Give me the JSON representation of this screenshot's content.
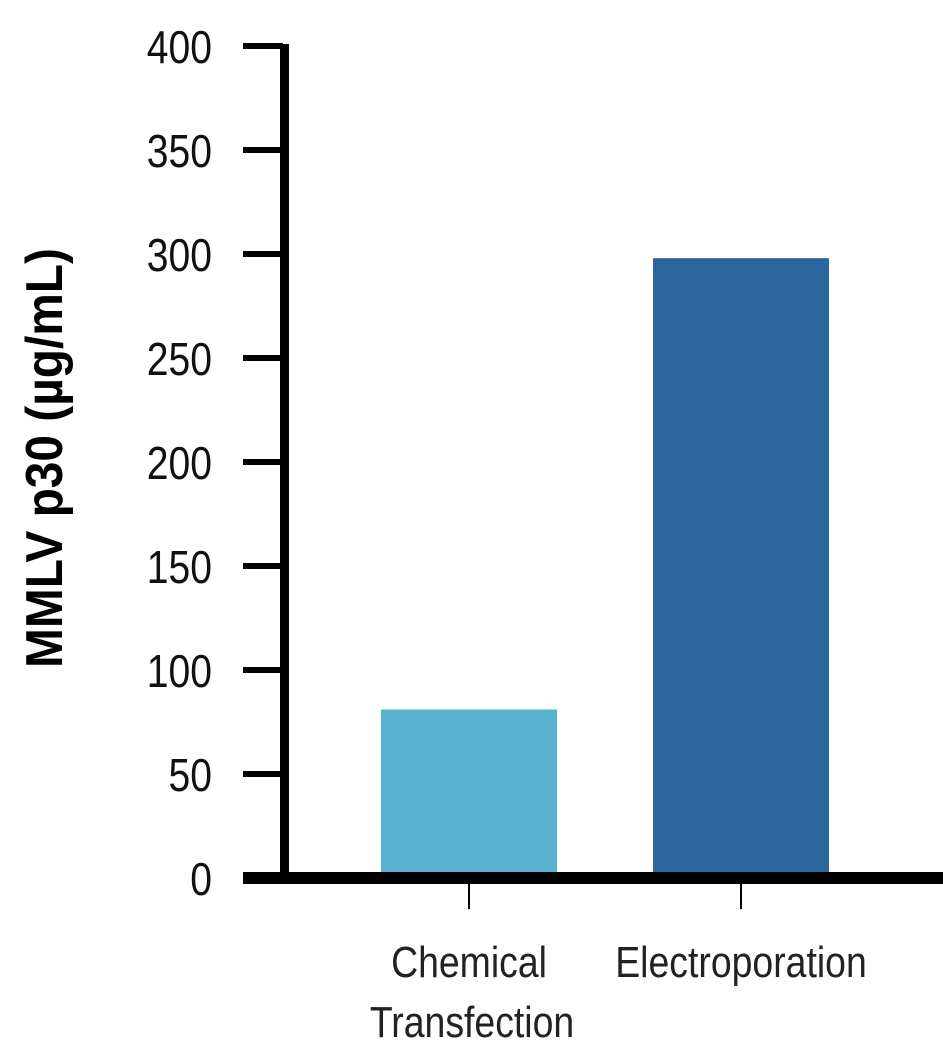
{
  "chart_data": {
    "type": "bar",
    "title": "",
    "xlabel": "",
    "ylabel": "MMLV p30 (µg/mL)",
    "categories": [
      [
        "Chemical",
        "Transfection"
      ],
      [
        "Electroporation"
      ]
    ],
    "values": [
      81,
      298
    ],
    "colors": [
      "#5ab2d1",
      "#2a659c"
    ],
    "ylim": [
      0,
      400
    ],
    "yticks": [
      0,
      50,
      100,
      150,
      200,
      250,
      300,
      350,
      400
    ],
    "grid": false,
    "legend": "none"
  }
}
